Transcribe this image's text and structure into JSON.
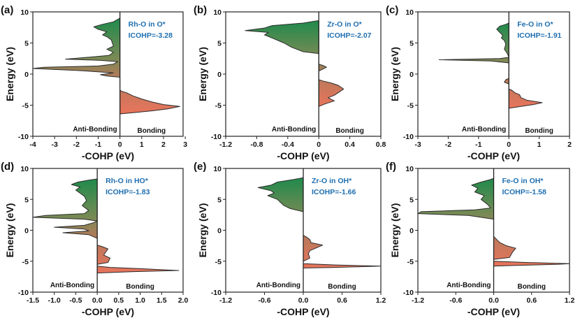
{
  "chart_data": [
    {
      "type": "area",
      "panel_label": "(a)",
      "title": "Rh-O in O*",
      "icohp": "ICOHP=-3.28",
      "xlabel": "-COHP (eV)",
      "ylabel": "Energy (eV)",
      "xlim": [
        -4,
        2.9
      ],
      "ylim": [
        -10,
        10
      ],
      "xticks": [
        -4,
        -3,
        -2,
        -1,
        0,
        1,
        2,
        3
      ],
      "xtick_labels": [
        "-4",
        "-3",
        "-2",
        "-1",
        "0",
        "1",
        "2",
        "3"
      ],
      "yticks": [
        -10,
        -5,
        0,
        5,
        10
      ],
      "ytick_labels": [
        "-10",
        "-5",
        "0",
        "5",
        "10"
      ],
      "anti_bonding_label": "Anti-Bonding",
      "bonding_label": "Bonding",
      "series": [
        {
          "name": "-COHP",
          "points": [
            [
              0,
              -6.4
            ],
            [
              0.6,
              -6.2
            ],
            [
              1.5,
              -5.9
            ],
            [
              2.2,
              -5.6
            ],
            [
              2.75,
              -5.2
            ],
            [
              2.0,
              -4.9
            ],
            [
              1.5,
              -4.5
            ],
            [
              1.0,
              -4.0
            ],
            [
              0.6,
              -3.5
            ],
            [
              0.3,
              -3.0
            ],
            [
              0.1,
              -2.8
            ],
            [
              0,
              -2.6
            ],
            [
              0,
              -0.5
            ],
            [
              -0.6,
              -0.3
            ],
            [
              -0.9,
              -0.1
            ],
            [
              -0.3,
              0.2
            ],
            [
              -2.0,
              0.6
            ],
            [
              -4.0,
              0.9
            ],
            [
              -3.5,
              1.1
            ],
            [
              -1.0,
              1.3
            ],
            [
              -0.3,
              1.6
            ],
            [
              -0.1,
              2.0
            ],
            [
              -0.9,
              2.2
            ],
            [
              -2.5,
              2.4
            ],
            [
              -1.5,
              2.7
            ],
            [
              -0.5,
              3.0
            ],
            [
              -0.3,
              3.5
            ],
            [
              -0.6,
              4.0
            ],
            [
              -0.3,
              4.5
            ],
            [
              -0.4,
              5.5
            ],
            [
              -0.6,
              6.0
            ],
            [
              -0.8,
              6.3
            ],
            [
              -0.6,
              6.8
            ],
            [
              -1.0,
              7.2
            ],
            [
              -1.2,
              7.6
            ],
            [
              -0.8,
              8.0
            ],
            [
              -0.3,
              8.4
            ],
            [
              -0.1,
              8.8
            ],
            [
              0,
              9.0
            ]
          ]
        }
      ]
    },
    {
      "type": "area",
      "panel_label": "(b)",
      "title": "Zr-O in O*",
      "icohp": "ICOHP=-2.07",
      "xlabel": "-COHP (eV)",
      "ylabel": "Energy (eV)",
      "xlim": [
        -1.2,
        0.8
      ],
      "ylim": [
        -10,
        10
      ],
      "xticks": [
        -1.2,
        -0.8,
        -0.4,
        0,
        0.4,
        0.8
      ],
      "xtick_labels": [
        "-1.2",
        "-0.8",
        "-0.4",
        "0",
        "0.4",
        "0.8"
      ],
      "yticks": [
        -10,
        -5,
        0,
        5,
        10
      ],
      "ytick_labels": [
        "-10",
        "-5",
        "0",
        "5",
        "10"
      ],
      "anti_bonding_label": "Anti-Bonding",
      "bonding_label": "Bonding",
      "series": [
        {
          "name": "-COHP",
          "points": [
            [
              0,
              -5.2
            ],
            [
              0.08,
              -4.8
            ],
            [
              0.2,
              -4.3
            ],
            [
              0.12,
              -3.8
            ],
            [
              0.2,
              -3.4
            ],
            [
              0.32,
              -2.4
            ],
            [
              0.25,
              -1.8
            ],
            [
              0.15,
              -1.4
            ],
            [
              0.05,
              -1.1
            ],
            [
              0,
              -0.9
            ],
            [
              0,
              0.5
            ],
            [
              0.05,
              0.8
            ],
            [
              0.1,
              1.1
            ],
            [
              0.05,
              1.4
            ],
            [
              0,
              1.6
            ],
            [
              0,
              3.3
            ],
            [
              -0.2,
              3.6
            ],
            [
              -0.35,
              4.3
            ],
            [
              -0.45,
              5.0
            ],
            [
              -0.6,
              5.8
            ],
            [
              -0.7,
              6.3
            ],
            [
              -0.65,
              6.7
            ],
            [
              -0.95,
              7.0
            ],
            [
              -0.7,
              7.4
            ],
            [
              -0.6,
              7.8
            ],
            [
              -0.2,
              8.2
            ],
            [
              -0.05,
              8.5
            ],
            [
              0,
              8.6
            ]
          ]
        }
      ]
    },
    {
      "type": "area",
      "panel_label": "(c)",
      "title": "Fe-O in O*",
      "icohp": "ICOHP=-1.91",
      "xlabel": "-COHP (eV)",
      "ylabel": "Energy (eV)",
      "xlim": [
        -3,
        2
      ],
      "ylim": [
        -10,
        10
      ],
      "xticks": [
        -3,
        -2,
        -1,
        0,
        1,
        2
      ],
      "xtick_labels": [
        "-3",
        "-2",
        "-1",
        "0",
        "1",
        "2"
      ],
      "yticks": [
        -10,
        -5,
        0,
        5,
        10
      ],
      "ytick_labels": [
        "-10",
        "-5",
        "0",
        "5",
        "10"
      ],
      "anti_bonding_label": "Anti-Bonding",
      "bonding_label": "Bonding",
      "series": [
        {
          "name": "-COHP",
          "points": [
            [
              0,
              -5.5
            ],
            [
              0.4,
              -5.2
            ],
            [
              0.8,
              -4.9
            ],
            [
              1.1,
              -4.6
            ],
            [
              0.6,
              -4.2
            ],
            [
              0.4,
              -3.8
            ],
            [
              0.35,
              -3.3
            ],
            [
              0.2,
              -3.0
            ],
            [
              0.1,
              -2.6
            ],
            [
              0,
              -2.4
            ],
            [
              0,
              -1.6
            ],
            [
              -0.15,
              -1.3
            ],
            [
              -0.1,
              -0.9
            ],
            [
              0,
              -0.7
            ],
            [
              0,
              1.8
            ],
            [
              -0.6,
              2.1
            ],
            [
              -2.3,
              2.3
            ],
            [
              -0.3,
              2.5
            ],
            [
              0,
              2.7
            ],
            [
              -0.05,
              3.3
            ],
            [
              -0.15,
              4.0
            ],
            [
              -0.1,
              4.8
            ],
            [
              -0.15,
              5.4
            ],
            [
              -0.25,
              5.8
            ],
            [
              -0.2,
              6.2
            ],
            [
              -0.3,
              6.7
            ],
            [
              -0.4,
              7.2
            ],
            [
              -0.3,
              7.7
            ],
            [
              -0.1,
              8.0
            ],
            [
              0,
              8.2
            ]
          ]
        }
      ]
    },
    {
      "type": "area",
      "panel_label": "(d)",
      "title": "Rh-O in HO*",
      "icohp": "ICOHP=-1.83",
      "xlabel": "-COHP (eV)",
      "ylabel": "Energy (eV)",
      "xlim": [
        -1.5,
        2.0
      ],
      "ylim": [
        -10,
        10
      ],
      "xticks": [
        -1.5,
        -1.0,
        -0.5,
        0,
        0.5,
        1.0,
        1.5,
        2.0
      ],
      "xtick_labels": [
        "-1.5",
        "-1.0",
        "-0.5",
        "0.0",
        "0.5",
        "1.0",
        "1.5",
        "2.0"
      ],
      "yticks": [
        -10,
        -5,
        0,
        5,
        10
      ],
      "ytick_labels": [
        "-10",
        "-5",
        "0",
        "5",
        "10"
      ],
      "anti_bonding_label": "Anti-Bonding",
      "bonding_label": "Bonding",
      "series": [
        {
          "name": "-COHP",
          "points": [
            [
              0,
              -6.9
            ],
            [
              0.8,
              -6.7
            ],
            [
              1.9,
              -6.5
            ],
            [
              1.0,
              -6.2
            ],
            [
              0.3,
              -6.0
            ],
            [
              0,
              -5.8
            ],
            [
              0,
              -5.5
            ],
            [
              0.25,
              -5.2
            ],
            [
              0.3,
              -4.5
            ],
            [
              0.15,
              -4.0
            ],
            [
              0.2,
              -3.5
            ],
            [
              0.25,
              -3.0
            ],
            [
              0.1,
              -2.6
            ],
            [
              0,
              -2.4
            ],
            [
              0,
              -1.3
            ],
            [
              -0.2,
              -0.7
            ],
            [
              -0.8,
              -0.4
            ],
            [
              -0.2,
              -0.1
            ],
            [
              -0.3,
              0.2
            ],
            [
              -1.0,
              0.5
            ],
            [
              -0.3,
              0.8
            ],
            [
              -0.1,
              1.2
            ],
            [
              0,
              1.5
            ],
            [
              -0.3,
              1.8
            ],
            [
              -1.5,
              2.1
            ],
            [
              -1.2,
              2.4
            ],
            [
              -0.3,
              2.7
            ],
            [
              -0.2,
              3.2
            ],
            [
              -0.35,
              4.0
            ],
            [
              -0.25,
              4.8
            ],
            [
              -0.3,
              5.5
            ],
            [
              -0.4,
              6.0
            ],
            [
              -0.5,
              6.5
            ],
            [
              -0.4,
              7.0
            ],
            [
              -0.6,
              7.4
            ],
            [
              -0.45,
              7.8
            ],
            [
              -0.2,
              8.1
            ],
            [
              0,
              8.3
            ]
          ]
        }
      ]
    },
    {
      "type": "area",
      "panel_label": "(e)",
      "title": "Zr-O in OH*",
      "icohp": "ICOHP=-1.66",
      "xlabel": "-COHP (eV)",
      "ylabel": "Energy (eV)",
      "xlim": [
        -1.2,
        1.2
      ],
      "ylim": [
        -10,
        10
      ],
      "xticks": [
        -1.2,
        -0.6,
        0,
        0.6,
        1.2
      ],
      "xtick_labels": [
        "-1.2",
        "-0.6",
        "0.0",
        "0.6",
        "1.2"
      ],
      "yticks": [
        -10,
        -5,
        0,
        5,
        10
      ],
      "ytick_labels": [
        "-10",
        "-5",
        "0",
        "5",
        "10"
      ],
      "anti_bonding_label": "Anti-Bonding",
      "bonding_label": "Bonding",
      "series": [
        {
          "name": "-COHP",
          "points": [
            [
              0,
              -6.1
            ],
            [
              0.5,
              -6.0
            ],
            [
              1.2,
              -5.8
            ],
            [
              0.5,
              -5.6
            ],
            [
              0,
              -5.4
            ],
            [
              0,
              -5.0
            ],
            [
              0.1,
              -4.5
            ],
            [
              0.08,
              -3.8
            ],
            [
              0.1,
              -3.3
            ],
            [
              0.3,
              -2.4
            ],
            [
              0.12,
              -2.0
            ],
            [
              0.1,
              -1.5
            ],
            [
              0.05,
              -1.1
            ],
            [
              0,
              -0.8
            ],
            [
              0,
              3.0
            ],
            [
              -0.2,
              3.5
            ],
            [
              -0.3,
              4.0
            ],
            [
              -0.35,
              4.5
            ],
            [
              -0.4,
              5.0
            ],
            [
              -0.55,
              5.6
            ],
            [
              -0.45,
              6.0
            ],
            [
              -0.5,
              6.4
            ],
            [
              -0.7,
              6.9
            ],
            [
              -0.5,
              7.3
            ],
            [
              -0.4,
              7.8
            ],
            [
              -0.15,
              8.2
            ],
            [
              0,
              8.5
            ]
          ]
        }
      ]
    },
    {
      "type": "area",
      "panel_label": "(f)",
      "title": "Fe-O in OH*",
      "icohp": "ICOHP=-1.58",
      "xlabel": "-COHP (eV)",
      "ylabel": "Energy (eV)",
      "xlim": [
        -1.2,
        1.2
      ],
      "ylim": [
        -10,
        10
      ],
      "xticks": [
        -1.2,
        -0.6,
        0,
        0.6,
        1.2
      ],
      "xtick_labels": [
        "-1.2",
        "-0.6",
        "0.0",
        "0.6",
        "1.2"
      ],
      "yticks": [
        -10,
        -5,
        0,
        5,
        10
      ],
      "ytick_labels": [
        "-10",
        "-5",
        "0",
        "5",
        "10"
      ],
      "anti_bonding_label": "Anti-Bonding",
      "bonding_label": "Bonding",
      "series": [
        {
          "name": "-COHP",
          "points": [
            [
              0,
              -5.8
            ],
            [
              0.3,
              -5.7
            ],
            [
              1.0,
              -5.5
            ],
            [
              1.2,
              -5.4
            ],
            [
              0.5,
              -5.2
            ],
            [
              0,
              -5.0
            ],
            [
              0,
              -4.7
            ],
            [
              0.25,
              -4.4
            ],
            [
              0.3,
              -3.5
            ],
            [
              0.35,
              -2.9
            ],
            [
              0.2,
              -2.5
            ],
            [
              0.1,
              -2.0
            ],
            [
              0.05,
              -1.5
            ],
            [
              0,
              -1.0
            ],
            [
              0,
              1.8
            ],
            [
              -0.4,
              2.4
            ],
            [
              -1.2,
              2.7
            ],
            [
              -1.15,
              3.0
            ],
            [
              -0.3,
              3.3
            ],
            [
              -0.05,
              3.6
            ],
            [
              -0.1,
              4.2
            ],
            [
              -0.2,
              5.0
            ],
            [
              -0.15,
              5.6
            ],
            [
              -0.3,
              6.2
            ],
            [
              -0.25,
              6.8
            ],
            [
              -0.35,
              7.3
            ],
            [
              -0.2,
              7.8
            ],
            [
              -0.05,
              8.2
            ],
            [
              0,
              8.4
            ]
          ]
        }
      ]
    }
  ]
}
